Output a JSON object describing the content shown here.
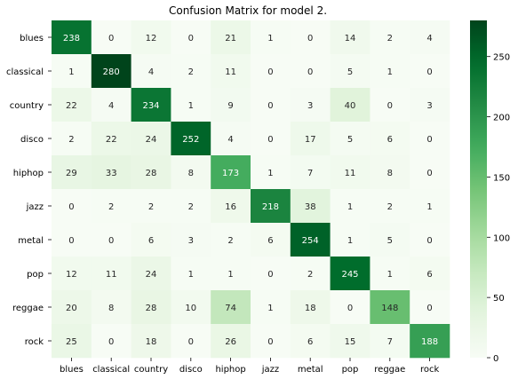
{
  "chart_data": {
    "type": "heatmap",
    "title": "Confusion Matrix for model 2.",
    "xlabel": "",
    "ylabel": "",
    "x_categories": [
      "blues",
      "classical",
      "country",
      "disco",
      "hiphop",
      "jazz",
      "metal",
      "pop",
      "reggae",
      "rock"
    ],
    "y_categories": [
      "blues",
      "classical",
      "country",
      "disco",
      "hiphop",
      "jazz",
      "metal",
      "pop",
      "reggae",
      "rock"
    ],
    "values": [
      [
        238,
        0,
        12,
        0,
        21,
        1,
        0,
        14,
        2,
        4
      ],
      [
        1,
        280,
        4,
        2,
        11,
        0,
        0,
        5,
        1,
        0
      ],
      [
        22,
        4,
        234,
        1,
        9,
        0,
        3,
        40,
        0,
        3
      ],
      [
        2,
        22,
        24,
        252,
        4,
        0,
        17,
        5,
        6,
        0
      ],
      [
        29,
        33,
        28,
        8,
        173,
        1,
        7,
        11,
        8,
        0
      ],
      [
        0,
        2,
        2,
        2,
        16,
        218,
        38,
        1,
        2,
        1
      ],
      [
        0,
        0,
        6,
        3,
        2,
        6,
        254,
        1,
        5,
        0
      ],
      [
        12,
        11,
        24,
        1,
        1,
        0,
        2,
        245,
        1,
        6
      ],
      [
        20,
        8,
        28,
        10,
        74,
        1,
        18,
        0,
        148,
        0
      ],
      [
        25,
        0,
        18,
        0,
        26,
        0,
        6,
        15,
        7,
        188
      ]
    ],
    "colorscale": "Greens",
    "color_low": "#f7fcf5",
    "color_high": "#00441b",
    "vmin": 0,
    "vmax": 280,
    "colorbar_ticks": [
      0,
      50,
      100,
      150,
      200,
      250
    ]
  }
}
